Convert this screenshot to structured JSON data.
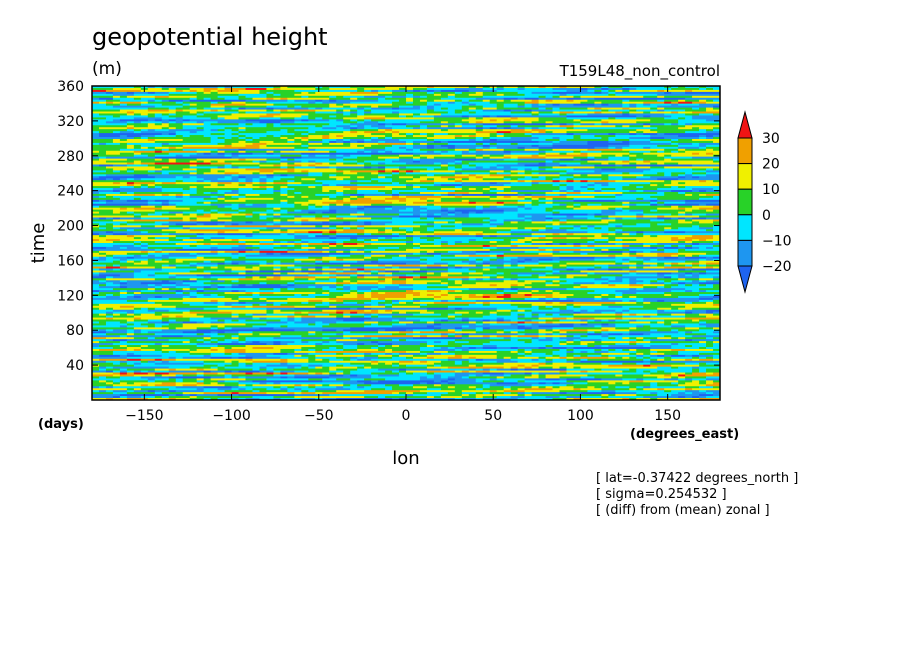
{
  "header": {
    "title": "geopotential height",
    "units": "(m)",
    "run_name": "T159L48_non_control"
  },
  "chart_data": {
    "type": "heatmap",
    "title": "geopotential height",
    "xlabel": "lon",
    "ylabel": "time",
    "x_units": "(degrees_east)",
    "y_units": "(days)",
    "xlim": [
      -180,
      180
    ],
    "ylim": [
      0,
      360
    ],
    "x_ticks": [
      -150,
      -100,
      -50,
      0,
      50,
      100,
      150
    ],
    "y_ticks": [
      40,
      80,
      120,
      160,
      200,
      240,
      280,
      320,
      360
    ],
    "colorbar": {
      "levels": [
        -20,
        -10,
        0,
        10,
        20,
        30
      ],
      "colors": [
        "#1e64f0",
        "#1e96f0",
        "#00e6ff",
        "#28d228",
        "#f0f000",
        "#f0a000",
        "#f01414"
      ],
      "extend": "both"
    },
    "annotations": [
      "[ lat=-0.37422 degrees_north ]",
      "[ sigma=0.254532 ]",
      "[ (diff) from (mean) zonal ]"
    ]
  }
}
